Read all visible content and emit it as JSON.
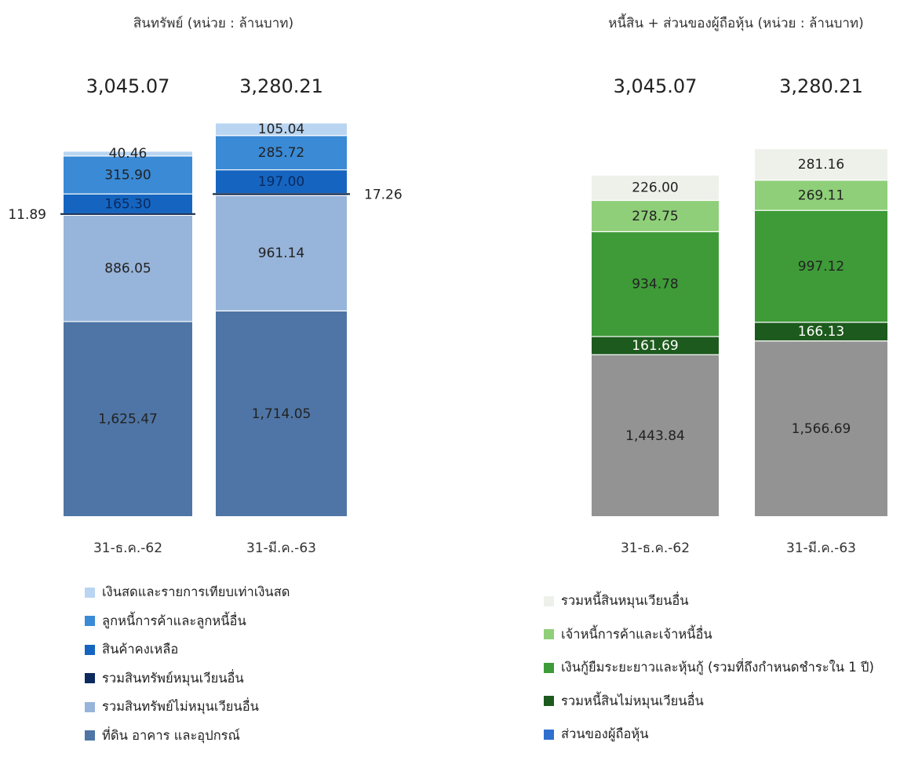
{
  "chart_data": [
    {
      "type": "bar",
      "stacked": true,
      "title": "สินทรัพย์ (หน่วย : ล้านบาท)",
      "categories": [
        "31-ธ.ค.-62",
        "31-มี.ค.-63"
      ],
      "totals": [
        "3,045.07",
        "3,280.21"
      ],
      "series": [
        {
          "name": "ที่ดิน อาคาร และอุปกรณ์",
          "color": "#4e75a5",
          "values": [
            1625.47,
            1714.05
          ],
          "labels": [
            "1,625.47",
            "1,714.05"
          ]
        },
        {
          "name": "รวมสินทรัพย์ไม่หมุนเวียนอื่น",
          "color": "#97b4da",
          "values": [
            886.05,
            961.14
          ],
          "labels": [
            "886.05",
            "961.14"
          ]
        },
        {
          "name": "รวมสินทรัพย์หมุนเวียนอื่น",
          "color": "#0c2a5e",
          "values": [
            11.89,
            17.26
          ],
          "labels": [
            "11.89",
            "17.26"
          ]
        },
        {
          "name": "สินค้าคงเหลือ",
          "color": "#1565c0",
          "values": [
            165.3,
            197.0
          ],
          "labels": [
            "165.30",
            "197.00"
          ]
        },
        {
          "name": "ลูกหนี้การค้าและลูกหนี้อื่น",
          "color": "#3a8ad6",
          "values": [
            315.9,
            285.72
          ],
          "labels": [
            "315.90",
            "285.72"
          ]
        },
        {
          "name": "เงินสดและรายการเทียบเท่าเงินสด",
          "color": "#b9d5f1",
          "values": [
            40.46,
            105.04
          ],
          "labels": [
            "40.46",
            "105.04"
          ]
        }
      ],
      "legend_order": [
        5,
        4,
        3,
        2,
        1,
        0
      ]
    },
    {
      "type": "bar",
      "stacked": true,
      "title": "หนี้สิน + ส่วนของผู้ถือหุ้น (หน่วย : ล้านบาท)",
      "categories": [
        "31-ธ.ค.-62",
        "31-มี.ค.-63"
      ],
      "totals": [
        "3,045.07",
        "3,280.21"
      ],
      "series": [
        {
          "name": "ส่วนของผู้ถือหุ้น",
          "color": "#939393",
          "legend_color": "#2f6fcf",
          "values": [
            1443.84,
            1566.69
          ],
          "labels": [
            "1,443.84",
            "1,566.69"
          ]
        },
        {
          "name": "รวมหนี้สินไม่หมุนเวียนอื่น",
          "color": "#1d5a1d",
          "values": [
            161.69,
            166.13
          ],
          "labels": [
            "161.69",
            "166.13"
          ]
        },
        {
          "name": "เงินกู้ยืมระยะยาวและหุ้นกู้ (รวมที่ถึงกำหนดชำระใน 1 ปี)",
          "color": "#3e9b38",
          "values": [
            934.78,
            997.12
          ],
          "labels": [
            "934.78",
            "997.12"
          ]
        },
        {
          "name": "เจ้าหนี้การค้าและเจ้าหนี้อื่น",
          "color": "#8fcf79",
          "values": [
            278.75,
            269.11
          ],
          "labels": [
            "278.75",
            "269.11"
          ]
        },
        {
          "name": "รวมหนี้สินหมุนเวียนอื่น",
          "color": "#eef1ea",
          "values": [
            226.0,
            281.16
          ],
          "labels": [
            "226.00",
            "281.16"
          ]
        }
      ],
      "legend_order": [
        4,
        3,
        2,
        1,
        0
      ]
    }
  ]
}
